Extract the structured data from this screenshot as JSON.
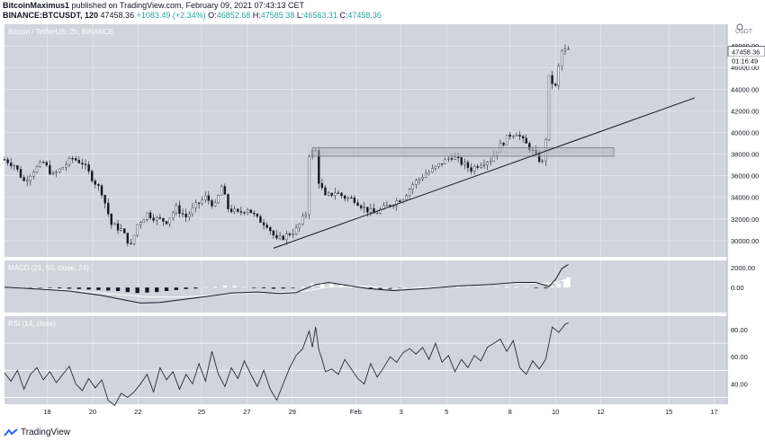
{
  "header": {
    "author": "BitcoinMaximus1",
    "published_text": "published on TradingView.com, February 09, 2021 07:43:13 CET",
    "symbol_line": "BINANCE:BTCUSDT, 120",
    "last": "47458.36",
    "change": "+1083.49 (+2.34%)",
    "o_label": "O:",
    "o_value": "46852.68",
    "h_label": "H:",
    "h_value": "47585.38",
    "l_label": "L:",
    "l_value": "46563.31",
    "c_label": "C:",
    "c_value": "47458.36"
  },
  "toolbar": {
    "settings_icon": "gear-icon",
    "axis_unit": "USDT"
  },
  "footer": {
    "logo_text": "TradingView"
  },
  "colors": {
    "pane_bg": "#d1d4dc",
    "candle": "#131722",
    "line": "#131722",
    "zone_fill": "#b2b5be",
    "zone_border": "#787b86",
    "grid": "#ffffff",
    "hist": "#ffffff",
    "price_label_bg": "#ffffff"
  },
  "chart_data": [
    {
      "type": "candlestick",
      "title": "Bitcoin / TetherUS, 2h, BINANCE",
      "ylim": [
        28500,
        50000
      ],
      "y_ticks": [
        "30000.00",
        "32000.00",
        "34000.00",
        "36000.00",
        "38000.00",
        "40000.00",
        "42000.00",
        "44000.00",
        "46000.00",
        "48000.00"
      ],
      "x_ticks": [
        "18",
        "20",
        "22",
        "25",
        "27",
        "29",
        "Feb",
        "3",
        "5",
        "8",
        "10",
        "12",
        "15",
        "17"
      ],
      "last_price": "47458.36",
      "countdown": "01:16:49",
      "path": [
        [
          0,
          37500
        ],
        [
          3,
          37000
        ],
        [
          6,
          35500
        ],
        [
          9,
          36500
        ],
        [
          12,
          37200
        ],
        [
          15,
          36000
        ],
        [
          18,
          36800
        ],
        [
          21,
          37600
        ],
        [
          24,
          37200
        ],
        [
          27,
          35800
        ],
        [
          30,
          34500
        ],
        [
          33,
          31500
        ],
        [
          36,
          31000
        ],
        [
          39,
          29500
        ],
        [
          41,
          31500
        ],
        [
          44,
          32500
        ],
        [
          47,
          32000
        ],
        [
          50,
          31800
        ],
        [
          53,
          33000
        ],
        [
          56,
          32200
        ],
        [
          59,
          33200
        ],
        [
          62,
          34000
        ],
        [
          65,
          33200
        ],
        [
          67,
          35000
        ],
        [
          69,
          33000
        ],
        [
          72,
          32500
        ],
        [
          75,
          33000
        ],
        [
          78,
          32000
        ],
        [
          81,
          31500
        ],
        [
          84,
          30000
        ],
        [
          87,
          30500
        ],
        [
          90,
          31000
        ],
        [
          93,
          32500
        ],
        [
          94,
          38000
        ],
        [
          96,
          38300
        ],
        [
          97,
          35500
        ],
        [
          99,
          34000
        ],
        [
          102,
          34500
        ],
        [
          105,
          34000
        ],
        [
          108,
          33800
        ],
        [
          111,
          33000
        ],
        [
          114,
          32500
        ],
        [
          117,
          33000
        ],
        [
          120,
          33500
        ],
        [
          123,
          34000
        ],
        [
          126,
          35200
        ],
        [
          129,
          36000
        ],
        [
          132,
          36500
        ],
        [
          135,
          37200
        ],
        [
          138,
          37800
        ],
        [
          141,
          37200
        ],
        [
          144,
          36600
        ],
        [
          147,
          37200
        ],
        [
          150,
          37500
        ],
        [
          153,
          38800
        ],
        [
          156,
          39800
        ],
        [
          158,
          40000
        ],
        [
          160,
          39200
        ],
        [
          162,
          38600
        ],
        [
          164,
          37800
        ],
        [
          166,
          37200
        ],
        [
          167,
          39500
        ],
        [
          168,
          45000
        ],
        [
          170,
          44200
        ],
        [
          171,
          46000
        ],
        [
          172,
          47500
        ],
        [
          174,
          47600
        ]
      ],
      "support_line": {
        "from": [
          83,
          29300
        ],
        "to": [
          213,
          43200
        ]
      },
      "resistance_zone": {
        "x": [
          95,
          188
        ],
        "y": [
          37800,
          38600
        ]
      }
    },
    {
      "type": "line",
      "title": "MACD (21, 50, close, 24)",
      "ylim": [
        -2500,
        2700
      ],
      "y_ticks": [
        "2000.00",
        "0.00"
      ],
      "macd": [
        [
          0,
          30
        ],
        [
          10,
          -150
        ],
        [
          20,
          -350
        ],
        [
          30,
          -800
        ],
        [
          38,
          -1300
        ],
        [
          42,
          -1550
        ],
        [
          48,
          -1500
        ],
        [
          55,
          -1200
        ],
        [
          62,
          -900
        ],
        [
          70,
          -550
        ],
        [
          78,
          -450
        ],
        [
          85,
          -600
        ],
        [
          90,
          -500
        ],
        [
          93,
          -100
        ],
        [
          96,
          300
        ],
        [
          100,
          500
        ],
        [
          105,
          250
        ],
        [
          112,
          -100
        ],
        [
          120,
          -300
        ],
        [
          130,
          -100
        ],
        [
          140,
          150
        ],
        [
          150,
          300
        ],
        [
          158,
          500
        ],
        [
          164,
          500
        ],
        [
          168,
          100
        ],
        [
          170,
          800
        ],
        [
          172,
          1900
        ],
        [
          174,
          2300
        ]
      ],
      "signal": [
        [
          0,
          0
        ],
        [
          15,
          -150
        ],
        [
          25,
          -400
        ],
        [
          35,
          -700
        ],
        [
          45,
          -950
        ],
        [
          55,
          -950
        ],
        [
          65,
          -750
        ],
        [
          75,
          -550
        ],
        [
          85,
          -500
        ],
        [
          93,
          -350
        ],
        [
          100,
          50
        ],
        [
          110,
          150
        ],
        [
          120,
          -100
        ],
        [
          130,
          0
        ],
        [
          140,
          100
        ],
        [
          150,
          250
        ],
        [
          160,
          450
        ],
        [
          166,
          400
        ],
        [
          170,
          500
        ],
        [
          174,
          900
        ]
      ],
      "histogram": [
        [
          2,
          30
        ],
        [
          5,
          20
        ],
        [
          8,
          -10
        ],
        [
          11,
          -30
        ],
        [
          14,
          -50
        ],
        [
          17,
          -80
        ],
        [
          20,
          -120
        ],
        [
          23,
          -150
        ],
        [
          26,
          -200
        ],
        [
          29,
          -250
        ],
        [
          32,
          -300
        ],
        [
          35,
          -350
        ],
        [
          38,
          -450
        ],
        [
          41,
          -550
        ],
        [
          44,
          -500
        ],
        [
          47,
          -450
        ],
        [
          50,
          -350
        ],
        [
          53,
          -250
        ],
        [
          56,
          -150
        ],
        [
          59,
          -100
        ],
        [
          62,
          50
        ],
        [
          65,
          100
        ],
        [
          68,
          200
        ],
        [
          71,
          150
        ],
        [
          74,
          60
        ],
        [
          77,
          -30
        ],
        [
          80,
          -80
        ],
        [
          83,
          -120
        ],
        [
          86,
          -100
        ],
        [
          89,
          -50
        ],
        [
          92,
          100
        ],
        [
          95,
          400
        ],
        [
          98,
          500
        ],
        [
          101,
          450
        ],
        [
          104,
          350
        ],
        [
          107,
          200
        ],
        [
          110,
          50
        ],
        [
          113,
          -80
        ],
        [
          116,
          -150
        ],
        [
          119,
          -180
        ],
        [
          122,
          -100
        ],
        [
          125,
          -50
        ],
        [
          128,
          30
        ],
        [
          131,
          80
        ],
        [
          134,
          120
        ],
        [
          137,
          100
        ],
        [
          140,
          80
        ],
        [
          143,
          50
        ],
        [
          146,
          30
        ],
        [
          149,
          30
        ],
        [
          152,
          50
        ],
        [
          155,
          100
        ],
        [
          158,
          80
        ],
        [
          161,
          60
        ],
        [
          164,
          -50
        ],
        [
          167,
          -80
        ],
        [
          169,
          100
        ],
        [
          171,
          400
        ],
        [
          173,
          800
        ],
        [
          174,
          1000
        ]
      ]
    },
    {
      "type": "line",
      "title": "RSI (14, close)",
      "ylim": [
        25,
        90
      ],
      "y_ticks": [
        "80.00",
        "60.00",
        "40.00"
      ],
      "bands": [
        70,
        50,
        30
      ],
      "values": [
        [
          0,
          48
        ],
        [
          2,
          42
        ],
        [
          4,
          50
        ],
        [
          6,
          36
        ],
        [
          8,
          47
        ],
        [
          10,
          52
        ],
        [
          12,
          43
        ],
        [
          14,
          49
        ],
        [
          16,
          41
        ],
        [
          18,
          47
        ],
        [
          20,
          53
        ],
        [
          22,
          40
        ],
        [
          24,
          35
        ],
        [
          26,
          44
        ],
        [
          28,
          37
        ],
        [
          30,
          43
        ],
        [
          32,
          28
        ],
        [
          34,
          24
        ],
        [
          36,
          33
        ],
        [
          38,
          30
        ],
        [
          40,
          34
        ],
        [
          42,
          40
        ],
        [
          44,
          47
        ],
        [
          46,
          34
        ],
        [
          48,
          52
        ],
        [
          50,
          43
        ],
        [
          52,
          49
        ],
        [
          54,
          36
        ],
        [
          56,
          47
        ],
        [
          58,
          40
        ],
        [
          60,
          55
        ],
        [
          62,
          42
        ],
        [
          64,
          64
        ],
        [
          66,
          47
        ],
        [
          68,
          38
        ],
        [
          70,
          52
        ],
        [
          72,
          44
        ],
        [
          74,
          57
        ],
        [
          76,
          47
        ],
        [
          78,
          38
        ],
        [
          80,
          50
        ],
        [
          82,
          36
        ],
        [
          84,
          28
        ],
        [
          86,
          40
        ],
        [
          88,
          52
        ],
        [
          90,
          61
        ],
        [
          92,
          66
        ],
        [
          94,
          79
        ],
        [
          95,
          67
        ],
        [
          96,
          82
        ],
        [
          97,
          65
        ],
        [
          98,
          58
        ],
        [
          99,
          49
        ],
        [
          101,
          51
        ],
        [
          103,
          47
        ],
        [
          105,
          58
        ],
        [
          107,
          51
        ],
        [
          109,
          44
        ],
        [
          111,
          40
        ],
        [
          113,
          55
        ],
        [
          115,
          45
        ],
        [
          117,
          52
        ],
        [
          119,
          60
        ],
        [
          121,
          56
        ],
        [
          123,
          63
        ],
        [
          125,
          66
        ],
        [
          127,
          62
        ],
        [
          129,
          67
        ],
        [
          131,
          58
        ],
        [
          133,
          70
        ],
        [
          135,
          56
        ],
        [
          137,
          61
        ],
        [
          139,
          49
        ],
        [
          141,
          58
        ],
        [
          143,
          52
        ],
        [
          145,
          61
        ],
        [
          147,
          57
        ],
        [
          149,
          67
        ],
        [
          151,
          70
        ],
        [
          153,
          73
        ],
        [
          155,
          64
        ],
        [
          157,
          72
        ],
        [
          159,
          52
        ],
        [
          161,
          47
        ],
        [
          163,
          57
        ],
        [
          165,
          51
        ],
        [
          167,
          58
        ],
        [
          169,
          82
        ],
        [
          171,
          78
        ],
        [
          173,
          84
        ],
        [
          174,
          85
        ]
      ]
    }
  ]
}
